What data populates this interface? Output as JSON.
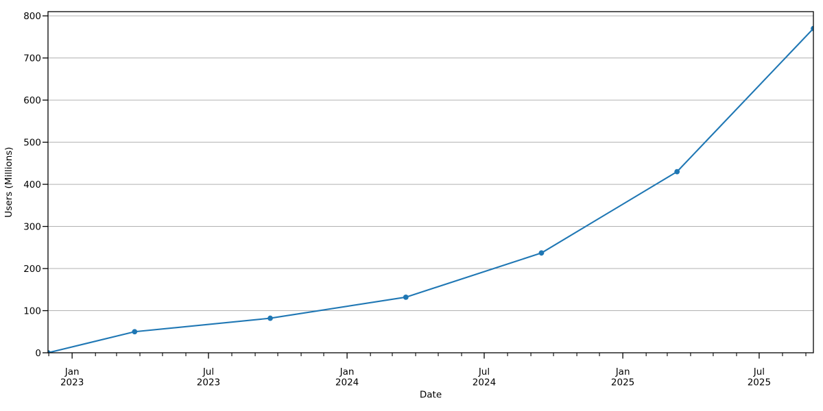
{
  "chart_data": {
    "type": "line",
    "title": "",
    "xlabel": "Date",
    "ylabel": "Users (Millions)",
    "series": [
      {
        "x": [
          "2022-11-30",
          "2023-03-25",
          "2023-09-21",
          "2024-03-19",
          "2024-09-15",
          "2025-03-14",
          "2025-09-11"
        ],
        "values": [
          0,
          50,
          82,
          132,
          237,
          430,
          770
        ]
      }
    ],
    "xlim": [
      "2022-11-30",
      "2025-09-11"
    ],
    "ylim": [
      0,
      810
    ],
    "yticks": [
      0,
      100,
      200,
      300,
      400,
      500,
      600,
      700,
      800
    ],
    "xticks": [
      {
        "date": "2023-01-01",
        "line1": "Jan",
        "line2": "2023"
      },
      {
        "date": "2023-07-01",
        "line1": "Jul",
        "line2": "2023"
      },
      {
        "date": "2024-01-01",
        "line1": "Jan",
        "line2": "2024"
      },
      {
        "date": "2024-07-01",
        "line1": "Jul",
        "line2": "2024"
      },
      {
        "date": "2025-01-01",
        "line1": "Jan",
        "line2": "2025"
      },
      {
        "date": "2025-07-01",
        "line1": "Jul",
        "line2": "2025"
      }
    ],
    "minor_xticks": "monthly",
    "grid": "horizontal",
    "legend": "none",
    "line_color": "#1f77b4",
    "marker_color": "#1f77b4",
    "grid_color": "#b0b0b0",
    "spine_color": "#000000",
    "text_color": "#000000",
    "background_color": "#ffffff"
  }
}
